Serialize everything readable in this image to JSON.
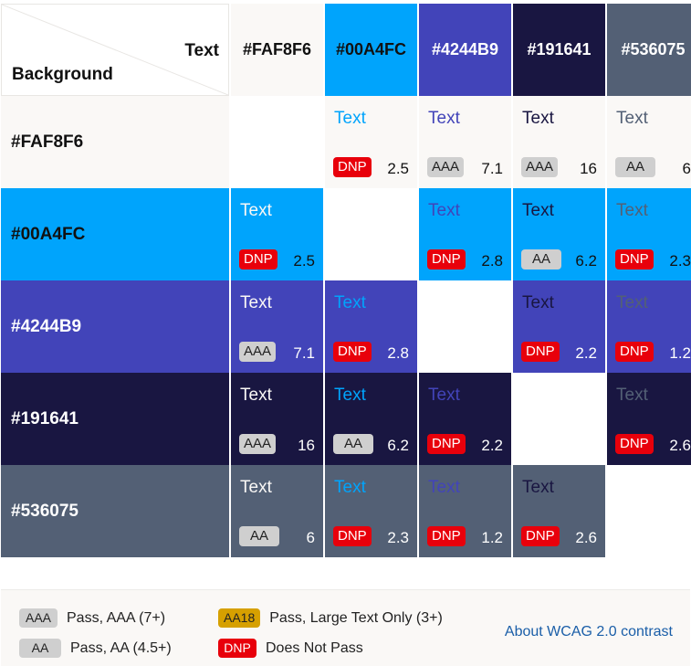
{
  "corner": {
    "text_label": "Text",
    "background_label": "Background"
  },
  "colors": [
    "#FAF8F6",
    "#00A4FC",
    "#4244B9",
    "#191641",
    "#536075"
  ],
  "header_text_colors": [
    "#111111",
    "#111111",
    "#ffffff",
    "#ffffff",
    "#ffffff"
  ],
  "row_label_colors": [
    "#111111",
    "#111111",
    "#ffffff",
    "#ffffff",
    "#ffffff"
  ],
  "colors_hex": {
    "FAF8F6": "#FAF8F6",
    "00A4FC": "#00A4FC",
    "4244B9": "#4244B9",
    "191641": "#191641",
    "536075": "#536075"
  },
  "sample_text": "Text",
  "rows": [
    {
      "bg": "#FAF8F6",
      "label": "#FAF8F6",
      "cells": [
        null,
        {
          "fg": "#00A4FC",
          "badge": "DNP",
          "level": "dnp",
          "ratio": "2.5"
        },
        {
          "fg": "#4244B9",
          "badge": "AAA",
          "level": "aaa",
          "ratio": "7.1"
        },
        {
          "fg": "#191641",
          "badge": "AAA",
          "level": "aaa",
          "ratio": "16"
        },
        {
          "fg": "#536075",
          "badge": "AA",
          "level": "aa",
          "ratio": "6"
        }
      ]
    },
    {
      "bg": "#00A4FC",
      "label": "#00A4FC",
      "cells": [
        {
          "fg": "#FAF8F6",
          "badge": "DNP",
          "level": "dnp",
          "ratio": "2.5"
        },
        null,
        {
          "fg": "#4244B9",
          "badge": "DNP",
          "level": "dnp",
          "ratio": "2.8"
        },
        {
          "fg": "#191641",
          "badge": "AA",
          "level": "aa",
          "ratio": "6.2"
        },
        {
          "fg": "#536075",
          "badge": "DNP",
          "level": "dnp",
          "ratio": "2.3"
        }
      ]
    },
    {
      "bg": "#4244B9",
      "label": "#4244B9",
      "cells": [
        {
          "fg": "#FAF8F6",
          "badge": "AAA",
          "level": "aaa",
          "ratio": "7.1"
        },
        {
          "fg": "#00A4FC",
          "badge": "DNP",
          "level": "dnp",
          "ratio": "2.8"
        },
        null,
        {
          "fg": "#191641",
          "badge": "DNP",
          "level": "dnp",
          "ratio": "2.2"
        },
        {
          "fg": "#536075",
          "badge": "DNP",
          "level": "dnp",
          "ratio": "1.2"
        }
      ]
    },
    {
      "bg": "#191641",
      "label": "#191641",
      "cells": [
        {
          "fg": "#FAF8F6",
          "badge": "AAA",
          "level": "aaa",
          "ratio": "16"
        },
        {
          "fg": "#00A4FC",
          "badge": "AA",
          "level": "aa",
          "ratio": "6.2"
        },
        {
          "fg": "#4244B9",
          "badge": "DNP",
          "level": "dnp",
          "ratio": "2.2"
        },
        null,
        {
          "fg": "#536075",
          "badge": "DNP",
          "level": "dnp",
          "ratio": "2.6"
        }
      ]
    },
    {
      "bg": "#536075",
      "label": "#536075",
      "cells": [
        {
          "fg": "#FAF8F6",
          "badge": "AA",
          "level": "aa",
          "ratio": "6"
        },
        {
          "fg": "#00A4FC",
          "badge": "DNP",
          "level": "dnp",
          "ratio": "2.3"
        },
        {
          "fg": "#4244B9",
          "badge": "DNP",
          "level": "dnp",
          "ratio": "1.2"
        },
        {
          "fg": "#191641",
          "badge": "DNP",
          "level": "dnp",
          "ratio": "2.6"
        },
        null
      ]
    }
  ],
  "legend": {
    "aaa": {
      "badge": "AAA",
      "label": "Pass, AAA (7+)",
      "color": "#cfcfcf"
    },
    "aa": {
      "badge": "AA",
      "label": "Pass, AA (4.5+)",
      "color": "#cfcfcf"
    },
    "aa18": {
      "badge": "AA18",
      "label": "Pass, Large Text Only (3+)",
      "color": "#d6a000"
    },
    "dnp": {
      "badge": "DNP",
      "label": "Does Not Pass",
      "color": "#e8000b"
    },
    "link": "About WCAG 2.0 contrast"
  }
}
